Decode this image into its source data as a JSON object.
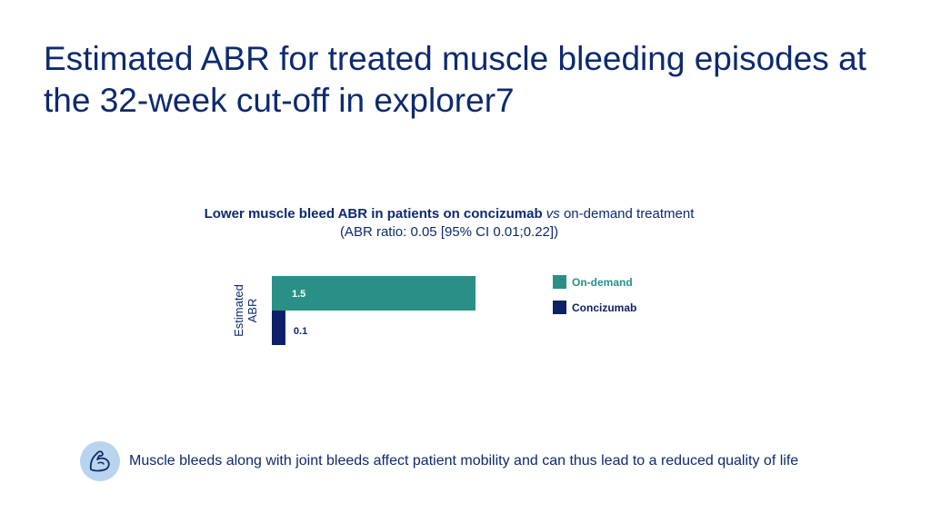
{
  "page": {
    "title": "Estimated ABR for treated muscle bleeding episodes at the 32-week cut-off in explorer7",
    "subtitle_bold": "Lower muscle bleed ABR in patients on concizumab",
    "subtitle_italic": "vs",
    "subtitle_rest": "on-demand treatment",
    "subtitle_line2": "(ABR ratio: 0.05 [95% CI 0.01;0.22])",
    "footer_text": "Muscle bleeds along with joint bleeds affect patient mobility and can thus lead to a reduced quality of life",
    "footer_icon": "flexed-arm-icon"
  },
  "colors": {
    "title": "#0d2a6e",
    "on_demand": "#2a9086",
    "concizumab": "#0d1f66",
    "icon_bg": "#b9d4ee"
  },
  "chart_data": {
    "type": "bar",
    "orientation": "horizontal",
    "ylabel": "Estimated ABR",
    "categories": [
      "On-demand",
      "Concizumab"
    ],
    "values": [
      1.5,
      0.1
    ],
    "data_labels": [
      "1.5",
      "0.1"
    ],
    "series": [
      {
        "name": "On-demand",
        "value": 1.5,
        "color": "#2a9086"
      },
      {
        "name": "Concizumab",
        "value": 0.1,
        "color": "#0d1f66"
      }
    ],
    "xlim": [
      0,
      1.5
    ],
    "legend_placement": "right",
    "grid": false
  }
}
